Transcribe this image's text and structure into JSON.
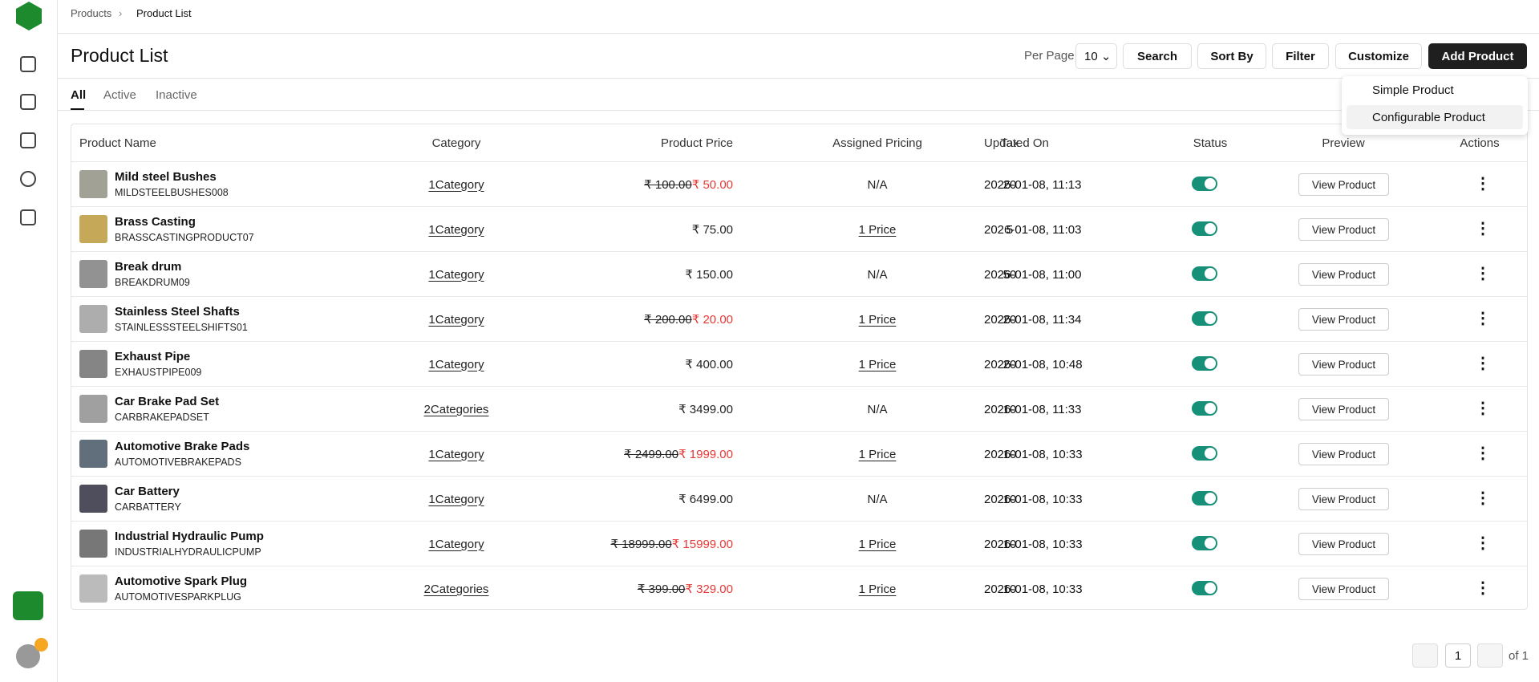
{
  "breadcrumb": [
    "Products",
    "Product List"
  ],
  "header": {
    "title": "Product List",
    "per_page_label": "Per Page",
    "per_page_value": "10",
    "buttons": [
      "Search",
      "Sort By",
      "Filter",
      "Customize",
      "Add Product"
    ]
  },
  "dropdown": [
    "Simple Product",
    "Configurable Product"
  ],
  "tabs": [
    "All",
    "Active",
    "Inactive"
  ],
  "table": {
    "columns": [
      "Product Name",
      "Category",
      "Product Price",
      "Assigned Pricing",
      "Tax",
      "Updated On",
      "Status",
      "Preview",
      "Actions"
    ],
    "rows": [
      {
        "name": "Mild steel Bushes",
        "sku": "MILDSTEELBUSHES008",
        "category": "1Category",
        "price_old": "₹ 100.00",
        "price": "₹ 50.00",
        "pricing": "N/A",
        "tax": "20",
        "updated": "2026-01-08, 11:13",
        "preview": "View Product"
      },
      {
        "name": "Brass Casting",
        "sku": "BRASSCASTINGPRODUCT07",
        "category": "1Category",
        "price": "₹ 75.00",
        "pricing": "1 Price",
        "tax": "5",
        "updated": "2026-01-08, 11:03",
        "preview": "View Product"
      },
      {
        "name": "Break drum",
        "sku": "BREAKDRUM09",
        "category": "1Category",
        "price": "₹ 150.00",
        "pricing": "N/A",
        "tax": "50",
        "updated": "2026-01-08, 11:00",
        "preview": "View Product"
      },
      {
        "name": "Stainless Steel Shafts",
        "sku": "STAINLESSSTEELSHIFTS01",
        "category": "1Category",
        "price_old": "₹ 200.00",
        "price": "₹ 20.00",
        "pricing": "1 Price",
        "tax": "20",
        "updated": "2026-01-08, 11:34",
        "preview": "View Product"
      },
      {
        "name": "Exhaust Pipe",
        "sku": "EXHAUSTPIPE009",
        "category": "1Category",
        "price": "₹ 400.00",
        "pricing": "1 Price",
        "tax": "20",
        "updated": "2026-01-08, 10:48",
        "preview": "View Product"
      },
      {
        "name": "Car Brake Pad Set",
        "sku": "CARBRAKEPADSET",
        "category": "2Categories",
        "price": "₹ 3499.00",
        "pricing": "N/A",
        "tax": "10",
        "updated": "2026-01-08, 11:33",
        "preview": "View Product"
      },
      {
        "name": "Automotive Brake Pads",
        "sku": "AUTOMOTIVEBRAKEPADS",
        "category": "1Category",
        "price_old": "₹ 2499.00",
        "price": "₹ 1999.00",
        "pricing": "1 Price",
        "tax": "10",
        "updated": "2026-01-08, 10:33",
        "preview": "View Product"
      },
      {
        "name": "Car Battery",
        "sku": "CARBATTERY",
        "category": "1Category",
        "price": "₹ 6499.00",
        "pricing": "N/A",
        "tax": "10",
        "updated": "2026-01-08, 10:33",
        "preview": "View Product"
      },
      {
        "name": "Industrial Hydraulic Pump",
        "sku": "INDUSTRIALHYDRAULICPUMP",
        "category": "1Category",
        "price_old": "₹ 18999.00",
        "price": "₹ 15999.00",
        "pricing": "1 Price",
        "tax": "10",
        "updated": "2026-01-08, 10:33",
        "preview": "View Product"
      },
      {
        "name": "Automotive Spark Plug",
        "sku": "AUTOMOTIVESPARKPLUG",
        "category": "2Categories",
        "price_old": "₹ 399.00",
        "price": "₹ 329.00",
        "pricing": "1 Price",
        "tax": "10",
        "updated": "2026-01-08, 10:33",
        "preview": "View Product"
      }
    ]
  },
  "pagination": {
    "page": "1",
    "of": "of 1"
  }
}
